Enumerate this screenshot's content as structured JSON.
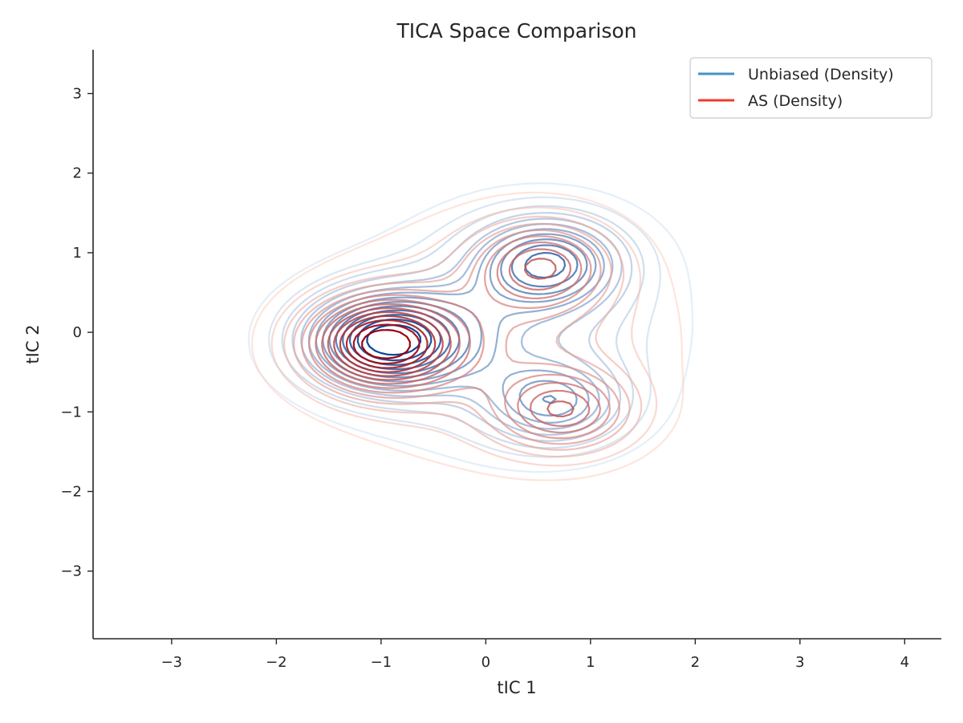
{
  "chart_data": {
    "type": "contour",
    "title": "TICA Space Comparison",
    "xlabel": "tIC 1",
    "ylabel": "tIC 2",
    "xlim": [
      -3.75,
      4.35
    ],
    "ylim": [
      -3.85,
      3.55
    ],
    "xticks": [
      -3,
      -2,
      -1,
      0,
      1,
      2,
      3,
      4
    ],
    "yticks": [
      -3,
      -2,
      -1,
      0,
      1,
      2,
      3
    ],
    "grid": false,
    "legend_position": "top-right",
    "series": [
      {
        "name": "Unbiased (Density)",
        "color": "#4292c6",
        "colormap": "Blues",
        "levels": 14,
        "components": [
          {
            "weight": 1.0,
            "mx": -0.95,
            "my": -0.1,
            "sx": 0.55,
            "sy": 0.42
          },
          {
            "weight": 0.7,
            "mx": 0.6,
            "my": 0.9,
            "sx": 0.5,
            "sy": 0.4
          },
          {
            "weight": 0.5,
            "mx": 0.65,
            "my": -0.9,
            "sx": 0.45,
            "sy": 0.35
          },
          {
            "weight": 0.35,
            "mx": 0.2,
            "my": 0.0,
            "sx": 1.0,
            "sy": 0.9
          }
        ]
      },
      {
        "name": "AS (Density)",
        "color": "#ef3b2c",
        "colormap": "Reds",
        "levels": 14,
        "components": [
          {
            "weight": 1.0,
            "mx": -1.0,
            "my": -0.15,
            "sx": 0.5,
            "sy": 0.4
          },
          {
            "weight": 0.55,
            "mx": 0.55,
            "my": 0.85,
            "sx": 0.45,
            "sy": 0.38
          },
          {
            "weight": 0.55,
            "mx": 0.75,
            "my": -1.0,
            "sx": 0.45,
            "sy": 0.35
          },
          {
            "weight": 0.3,
            "mx": 0.1,
            "my": -0.1,
            "sx": 1.05,
            "sy": 0.95
          }
        ]
      }
    ],
    "tick_labels_x": [
      "−3",
      "−2",
      "−1",
      "0",
      "1",
      "2",
      "3",
      "4"
    ],
    "tick_labels_y": [
      "−3",
      "−2",
      "−1",
      "0",
      "1",
      "2",
      "3"
    ]
  }
}
